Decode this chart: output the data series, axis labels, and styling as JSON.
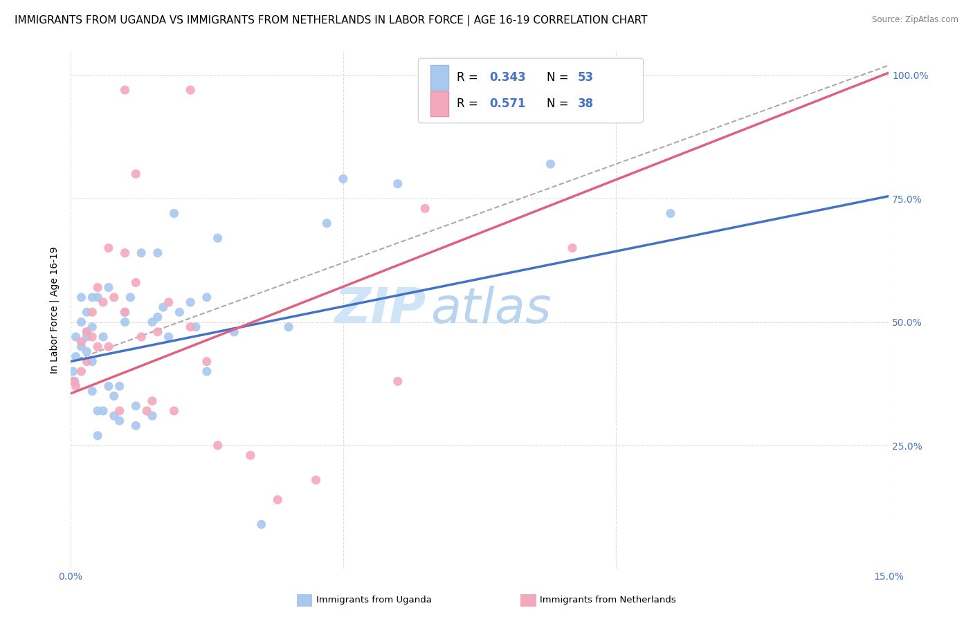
{
  "title": "IMMIGRANTS FROM UGANDA VS IMMIGRANTS FROM NETHERLANDS IN LABOR FORCE | AGE 16-19 CORRELATION CHART",
  "source": "Source: ZipAtlas.com",
  "ylabel_label": "In Labor Force | Age 16-19",
  "legend_blue_R": "0.343",
  "legend_blue_N": "53",
  "legend_pink_R": "0.571",
  "legend_pink_N": "38",
  "blue_color": "#A8C8F0",
  "pink_color": "#F4A8BC",
  "blue_line_color": "#4472C4",
  "pink_line_color": "#E06080",
  "dashed_line_color": "#AAAAAA",
  "watermark_zip": "ZIP",
  "watermark_atlas": "atlas",
  "watermark_color": "#D0E4F7",
  "xlim": [
    0.0,
    0.15
  ],
  "ylim": [
    0.0,
    1.05
  ],
  "blue_scatter_x": [
    0.0005,
    0.0008,
    0.001,
    0.001,
    0.002,
    0.002,
    0.002,
    0.003,
    0.003,
    0.003,
    0.003,
    0.004,
    0.004,
    0.004,
    0.004,
    0.005,
    0.005,
    0.005,
    0.006,
    0.006,
    0.007,
    0.007,
    0.008,
    0.008,
    0.009,
    0.009,
    0.01,
    0.01,
    0.011,
    0.012,
    0.012,
    0.013,
    0.015,
    0.015,
    0.016,
    0.016,
    0.017,
    0.018,
    0.019,
    0.02,
    0.022,
    0.023,
    0.025,
    0.025,
    0.027,
    0.03,
    0.035,
    0.04,
    0.047,
    0.05,
    0.06,
    0.088,
    0.11
  ],
  "blue_scatter_y": [
    0.4,
    0.38,
    0.43,
    0.47,
    0.45,
    0.5,
    0.55,
    0.44,
    0.47,
    0.48,
    0.52,
    0.36,
    0.42,
    0.49,
    0.55,
    0.27,
    0.32,
    0.55,
    0.32,
    0.47,
    0.37,
    0.57,
    0.31,
    0.35,
    0.3,
    0.37,
    0.5,
    0.52,
    0.55,
    0.29,
    0.33,
    0.64,
    0.31,
    0.5,
    0.51,
    0.64,
    0.53,
    0.47,
    0.72,
    0.52,
    0.54,
    0.49,
    0.4,
    0.55,
    0.67,
    0.48,
    0.09,
    0.49,
    0.7,
    0.79,
    0.78,
    0.82,
    0.72
  ],
  "pink_scatter_x": [
    0.0005,
    0.001,
    0.002,
    0.002,
    0.003,
    0.003,
    0.004,
    0.004,
    0.005,
    0.005,
    0.006,
    0.007,
    0.007,
    0.008,
    0.009,
    0.01,
    0.01,
    0.01,
    0.012,
    0.012,
    0.013,
    0.014,
    0.015,
    0.016,
    0.018,
    0.019,
    0.022,
    0.022,
    0.025,
    0.027,
    0.033,
    0.038,
    0.045,
    0.06,
    0.065,
    0.075,
    0.085,
    0.092
  ],
  "pink_scatter_y": [
    0.38,
    0.37,
    0.4,
    0.46,
    0.42,
    0.48,
    0.47,
    0.52,
    0.45,
    0.57,
    0.54,
    0.45,
    0.65,
    0.55,
    0.32,
    0.52,
    0.64,
    0.97,
    0.58,
    0.8,
    0.47,
    0.32,
    0.34,
    0.48,
    0.54,
    0.32,
    0.97,
    0.49,
    0.42,
    0.25,
    0.23,
    0.14,
    0.18,
    0.38,
    0.73,
    0.95,
    1.0,
    0.65
  ],
  "blue_line_x0": 0.0,
  "blue_line_x1": 0.15,
  "blue_line_y0": 0.42,
  "blue_line_y1": 0.755,
  "pink_line_x0": 0.0,
  "pink_line_x1": 0.15,
  "pink_line_y0": 0.355,
  "pink_line_y1": 1.005,
  "dashed_line_x0": 0.0,
  "dashed_line_x1": 0.15,
  "dashed_line_y0": 0.42,
  "dashed_line_y1": 1.02,
  "grid_color": "#DDDDDD",
  "title_fontsize": 11,
  "axis_label_fontsize": 10,
  "tick_fontsize": 10,
  "watermark_fontsize_zip": 52,
  "watermark_fontsize_atlas": 52,
  "legend_fontsize": 12,
  "label_color": "#4472C4",
  "xtick_labels": [
    "0.0%",
    "",
    "",
    "15.0%"
  ],
  "xtick_vals": [
    0.0,
    0.05,
    0.1,
    0.15
  ],
  "ytick_right_labels": [
    "",
    "25.0%",
    "50.0%",
    "75.0%",
    "100.0%"
  ],
  "ytick_vals": [
    0.0,
    0.25,
    0.5,
    0.75,
    1.0
  ]
}
